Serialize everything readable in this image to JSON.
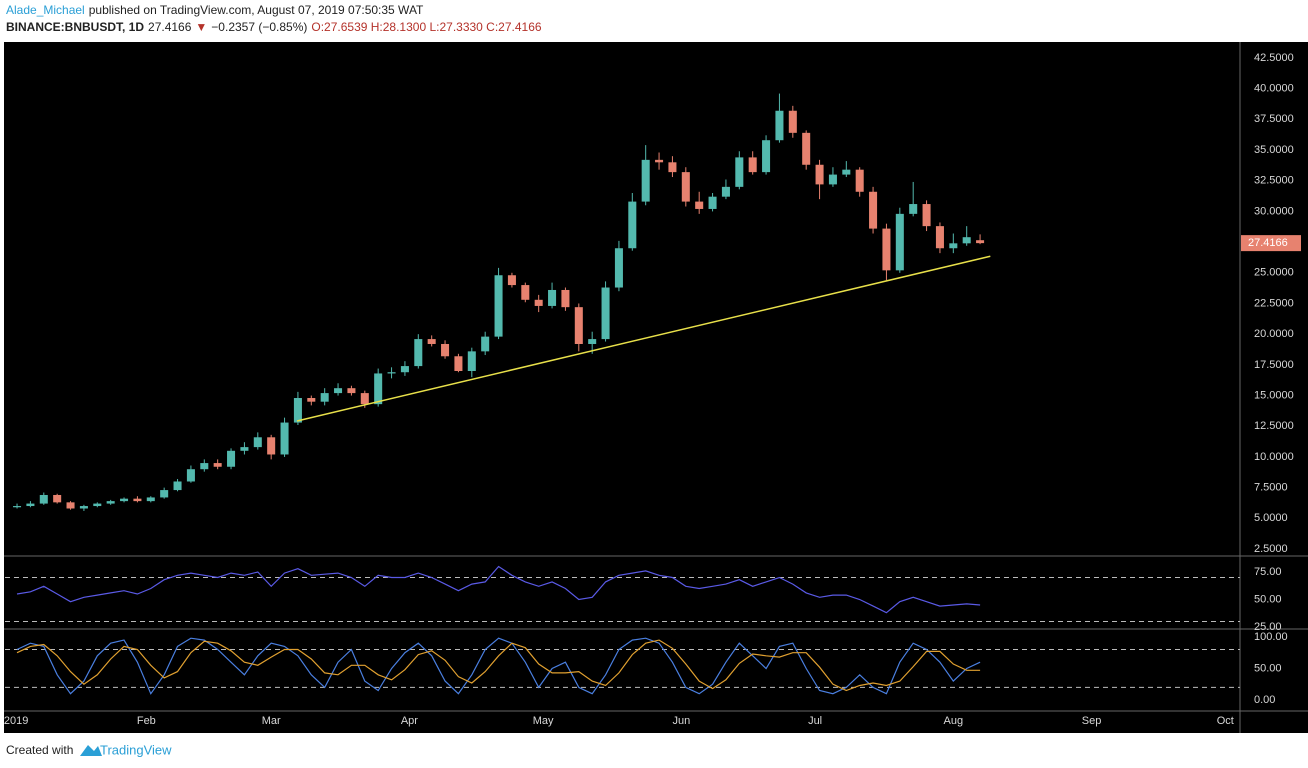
{
  "header": {
    "author": "Alade_Michael",
    "published": "published on TradingView.com, August 07, 2019 07:50:35 WAT",
    "symbol": "BINANCE:BNBUSDT, 1D",
    "last": "27.4166",
    "arrow": "▼",
    "change": "−0.2357 (−0.85%)",
    "ohlc": "O:27.6539 H:28.1300 L:27.3330 C:27.4166"
  },
  "footer": {
    "created": "Created with",
    "brand": "TradingView"
  },
  "chart_data": [
    {
      "type": "candlestick",
      "up_color": "#53b9ae",
      "down_color": "#e7826f",
      "xlim": [
        -0.7,
        276.3
      ],
      "xticks": [
        {
          "value": 0,
          "label": "2019"
        },
        {
          "value": 31,
          "label": "Feb"
        },
        {
          "value": 59,
          "label": "Mar"
        },
        {
          "value": 90,
          "label": "Apr"
        },
        {
          "value": 120,
          "label": "May"
        },
        {
          "value": 151,
          "label": "Jun"
        },
        {
          "value": 181,
          "label": "Jul"
        },
        {
          "value": 212,
          "label": "Aug"
        },
        {
          "value": 243,
          "label": "Sep"
        },
        {
          "value": 273,
          "label": "Oct"
        }
      ],
      "ylim": [
        1.93,
        43.8
      ],
      "yticks": [
        {
          "value": 2.5,
          "label": "2.5000"
        },
        {
          "value": 5,
          "label": "5.0000"
        },
        {
          "value": 7.5,
          "label": "7.5000"
        },
        {
          "value": 10,
          "label": "10.0000"
        },
        {
          "value": 12.5,
          "label": "12.5000"
        },
        {
          "value": 15,
          "label": "15.0000"
        },
        {
          "value": 17.5,
          "label": "17.5000"
        },
        {
          "value": 20,
          "label": "20.0000"
        },
        {
          "value": 22.5,
          "label": "22.5000"
        },
        {
          "value": 25,
          "label": "25.0000"
        },
        {
          "value": 27.5,
          "label": "27.5000"
        },
        {
          "value": 30,
          "label": "30.0000"
        },
        {
          "value": 32.5,
          "label": "32.5000"
        },
        {
          "value": 35,
          "label": "35.0000"
        },
        {
          "value": 37.5,
          "label": "37.5000"
        },
        {
          "value": 40,
          "label": "40.0000"
        },
        {
          "value": 42.5,
          "label": "42.5000"
        }
      ],
      "x": [
        2,
        5,
        8,
        11,
        14,
        17,
        20,
        23,
        26,
        29,
        32,
        35,
        38,
        41,
        44,
        47,
        50,
        53,
        56,
        59,
        62,
        65,
        68,
        71,
        74,
        77,
        80,
        83,
        86,
        89,
        92,
        95,
        98,
        101,
        104,
        107,
        110,
        113,
        116,
        119,
        122,
        125,
        128,
        131,
        134,
        137,
        140,
        143,
        146,
        149,
        152,
        155,
        158,
        161,
        164,
        167,
        170,
        173,
        176,
        179,
        182,
        185,
        188,
        191,
        194,
        197,
        200,
        203,
        206,
        209,
        212,
        215,
        218
      ],
      "open": [
        5.9,
        6.0,
        6.2,
        6.9,
        6.3,
        5.8,
        6.0,
        6.2,
        6.4,
        6.6,
        6.4,
        6.7,
        7.3,
        8.0,
        9.0,
        9.5,
        9.2,
        10.5,
        10.8,
        11.6,
        10.2,
        12.8,
        14.8,
        14.5,
        15.2,
        15.6,
        15.2,
        14.3,
        16.8,
        16.9,
        17.4,
        19.6,
        19.2,
        18.2,
        17.0,
        18.6,
        19.8,
        24.8,
        24.0,
        22.8,
        22.3,
        23.6,
        22.2,
        19.2,
        19.6,
        23.8,
        27.0,
        30.8,
        34.2,
        34.0,
        33.2,
        30.8,
        30.2,
        31.2,
        32.0,
        34.4,
        33.2,
        35.8,
        38.2,
        36.4,
        33.8,
        32.2,
        33.0,
        33.4,
        31.6,
        28.6,
        25.2,
        29.8,
        30.6,
        28.8,
        27.0,
        27.4,
        27.6539
      ],
      "high": [
        6.2,
        6.4,
        7.1,
        7.0,
        6.4,
        6.1,
        6.3,
        6.5,
        6.7,
        6.8,
        6.8,
        7.5,
        8.2,
        9.3,
        9.8,
        9.8,
        10.7,
        11.2,
        12.0,
        11.8,
        13.2,
        15.3,
        15.0,
        15.6,
        16.0,
        15.8,
        15.4,
        17.2,
        17.3,
        17.8,
        20.0,
        19.9,
        19.5,
        18.4,
        18.9,
        20.2,
        25.4,
        25.0,
        24.2,
        23.2,
        24.2,
        23.8,
        22.5,
        20.2,
        24.3,
        27.6,
        31.5,
        35.4,
        34.8,
        34.5,
        33.6,
        31.6,
        31.5,
        32.6,
        34.9,
        34.9,
        36.2,
        39.6,
        38.6,
        36.6,
        34.2,
        33.6,
        34.1,
        33.6,
        32.0,
        29.0,
        30.3,
        32.4,
        30.9,
        29.1,
        28.2,
        28.8,
        28.13
      ],
      "low": [
        5.8,
        5.9,
        6.1,
        6.2,
        5.7,
        5.6,
        5.9,
        6.1,
        6.3,
        6.3,
        6.3,
        6.6,
        7.2,
        7.9,
        8.8,
        9.0,
        9.0,
        10.2,
        10.6,
        9.8,
        10.0,
        12.6,
        14.2,
        14.2,
        15.0,
        15.0,
        14.0,
        14.1,
        16.4,
        16.6,
        17.2,
        19.0,
        18.0,
        16.9,
        16.5,
        18.3,
        19.6,
        23.8,
        22.6,
        21.8,
        22.1,
        21.9,
        18.6,
        18.4,
        19.4,
        23.5,
        26.8,
        30.5,
        33.4,
        32.8,
        30.4,
        29.8,
        30.0,
        31.0,
        31.8,
        33.0,
        33.0,
        35.6,
        36.0,
        33.4,
        31.0,
        32.0,
        32.8,
        31.2,
        28.2,
        24.4,
        25.0,
        29.6,
        28.4,
        26.6,
        26.6,
        27.2,
        27.333
      ],
      "close": [
        6.0,
        6.2,
        6.9,
        6.3,
        5.8,
        6.0,
        6.2,
        6.4,
        6.6,
        6.4,
        6.7,
        7.3,
        8.0,
        9.0,
        9.5,
        9.2,
        10.5,
        10.8,
        11.6,
        10.2,
        12.8,
        14.8,
        14.5,
        15.2,
        15.6,
        15.2,
        14.3,
        16.8,
        16.9,
        17.4,
        19.6,
        19.2,
        18.2,
        17.0,
        18.6,
        19.8,
        24.8,
        24.0,
        22.8,
        22.3,
        23.6,
        22.2,
        19.2,
        19.6,
        23.8,
        27.0,
        30.8,
        34.2,
        34.0,
        33.2,
        30.8,
        30.2,
        31.2,
        32.0,
        34.4,
        33.2,
        35.8,
        38.2,
        36.4,
        33.8,
        32.2,
        33.0,
        33.4,
        31.6,
        28.6,
        25.2,
        29.8,
        30.6,
        28.8,
        27.0,
        27.4,
        27.9,
        27.4166
      ],
      "trendline": {
        "x": [
          64.8,
          220.3
        ],
        "y": [
          12.93,
          26.35
        ],
        "color": "#e8e04a"
      },
      "last_price": {
        "value": 27.4166,
        "label": "27.4166"
      }
    },
    {
      "type": "line",
      "xlim": [
        -0.7,
        276.3
      ],
      "ylim": [
        24.1,
        88.6
      ],
      "yticks": [
        {
          "value": 25,
          "label": "25.00"
        },
        {
          "value": 50,
          "label": "50.00"
        },
        {
          "value": 75,
          "label": "75.00"
        }
      ],
      "bands": [
        70,
        30
      ],
      "x": [
        2,
        5,
        8,
        11,
        14,
        17,
        20,
        23,
        26,
        29,
        32,
        35,
        38,
        41,
        44,
        47,
        50,
        53,
        56,
        59,
        62,
        65,
        68,
        71,
        74,
        77,
        80,
        83,
        86,
        89,
        92,
        95,
        98,
        101,
        104,
        107,
        110,
        113,
        116,
        119,
        122,
        125,
        128,
        131,
        134,
        137,
        140,
        143,
        146,
        149,
        152,
        155,
        158,
        161,
        164,
        167,
        170,
        173,
        176,
        179,
        182,
        185,
        188,
        191,
        194,
        197,
        200,
        203,
        206,
        209,
        212,
        215,
        218
      ],
      "series": [
        {
          "color": "#5a5ae6",
          "values": [
            55,
            57,
            62,
            55,
            48,
            52,
            54,
            56,
            58,
            55,
            60,
            68,
            72,
            74,
            72,
            70,
            74,
            72,
            75,
            62,
            74,
            78,
            72,
            73,
            74,
            70,
            62,
            72,
            70,
            70,
            74,
            70,
            64,
            58,
            64,
            66,
            80,
            72,
            66,
            62,
            66,
            60,
            50,
            52,
            66,
            72,
            74,
            76,
            72,
            70,
            62,
            60,
            62,
            64,
            68,
            62,
            66,
            70,
            64,
            56,
            52,
            54,
            54,
            50,
            44,
            38,
            48,
            52,
            48,
            44,
            45,
            46,
            45
          ]
        }
      ]
    },
    {
      "type": "line",
      "xlim": [
        -0.7,
        276.3
      ],
      "ylim": [
        -15.9,
        111
      ],
      "yticks": [
        {
          "value": 0,
          "label": "0.00"
        },
        {
          "value": 50,
          "label": "50.00"
        },
        {
          "value": 100,
          "label": "100.00"
        }
      ],
      "bands": [
        80,
        20
      ],
      "x": [
        2,
        5,
        8,
        11,
        14,
        17,
        20,
        23,
        26,
        29,
        32,
        35,
        38,
        41,
        44,
        47,
        50,
        53,
        56,
        59,
        62,
        65,
        68,
        71,
        74,
        77,
        80,
        83,
        86,
        89,
        92,
        95,
        98,
        101,
        104,
        107,
        110,
        113,
        116,
        119,
        122,
        125,
        128,
        131,
        134,
        137,
        140,
        143,
        146,
        149,
        152,
        155,
        158,
        161,
        164,
        167,
        170,
        173,
        176,
        179,
        182,
        185,
        188,
        191,
        194,
        197,
        200,
        203,
        206,
        209,
        212,
        215,
        218
      ],
      "series": [
        {
          "color": "#4a7fe0",
          "values": [
            80,
            90,
            85,
            40,
            10,
            30,
            70,
            90,
            95,
            60,
            10,
            40,
            85,
            98,
            95,
            80,
            60,
            40,
            70,
            90,
            85,
            70,
            40,
            20,
            60,
            80,
            30,
            15,
            50,
            75,
            90,
            70,
            30,
            10,
            40,
            80,
            98,
            90,
            60,
            20,
            50,
            60,
            20,
            10,
            40,
            80,
            95,
            98,
            90,
            60,
            20,
            10,
            25,
            60,
            90,
            70,
            50,
            85,
            90,
            50,
            15,
            10,
            20,
            40,
            20,
            10,
            60,
            90,
            80,
            60,
            30,
            50,
            60
          ]
        },
        {
          "color": "#e0a030",
          "values": [
            75,
            85,
            88,
            70,
            45,
            25,
            40,
            65,
            85,
            80,
            55,
            35,
            45,
            75,
            93,
            90,
            78,
            60,
            55,
            68,
            80,
            80,
            65,
            43,
            40,
            55,
            55,
            40,
            32,
            48,
            72,
            78,
            63,
            37,
            27,
            45,
            70,
            90,
            83,
            57,
            43,
            43,
            45,
            30,
            23,
            43,
            72,
            90,
            95,
            82,
            57,
            30,
            18,
            32,
            58,
            73,
            70,
            68,
            75,
            75,
            52,
            25,
            15,
            23,
            27,
            23,
            30,
            53,
            77,
            77,
            57,
            47,
            47
          ]
        }
      ]
    }
  ]
}
